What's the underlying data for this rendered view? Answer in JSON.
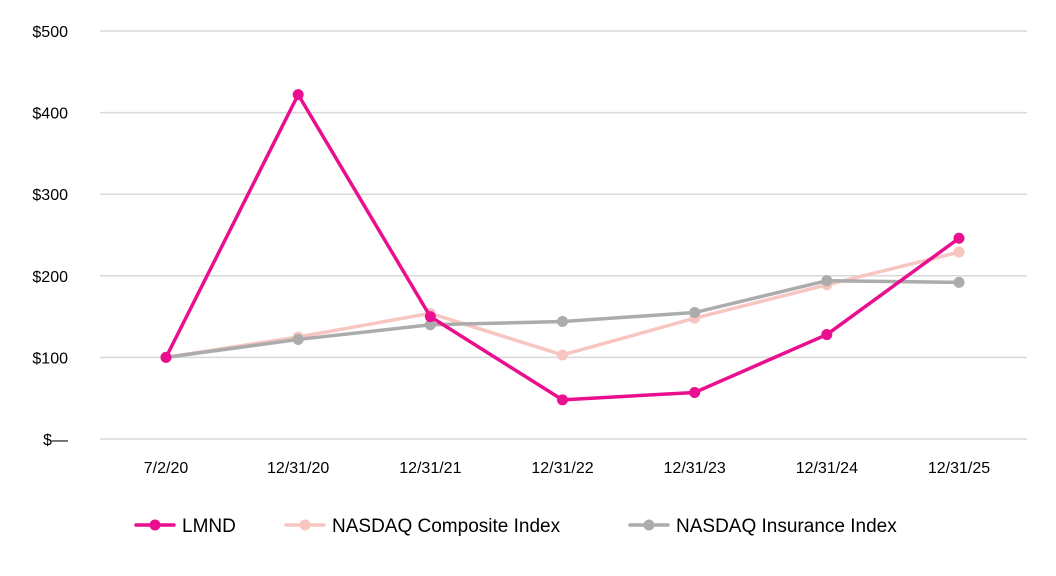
{
  "chart_data": {
    "type": "line",
    "title": "",
    "xlabel": "",
    "ylabel": "",
    "categories": [
      "7/2/20",
      "12/31/20",
      "12/31/21",
      "12/31/22",
      "12/31/23",
      "12/31/24",
      "12/31/25"
    ],
    "ylim": [
      0,
      500
    ],
    "yticks": [
      0,
      100,
      200,
      300,
      400,
      500
    ],
    "ytick_labels": [
      "$—",
      "$100",
      "$200",
      "$300",
      "$400",
      "$500"
    ],
    "grid": true,
    "legend_position": "bottom",
    "series": [
      {
        "name": "NASDAQ Composite Index",
        "color": "#f8c6c0",
        "values": [
          100,
          125,
          154,
          103,
          148,
          189,
          229
        ]
      },
      {
        "name": "NASDAQ Insurance Index",
        "color": "#acacac",
        "values": [
          100,
          122,
          140,
          144,
          155,
          194,
          192
        ]
      },
      {
        "name": "LMND",
        "color": "#ea0f8e",
        "values": [
          100,
          422,
          150,
          48,
          57,
          128,
          246
        ]
      }
    ],
    "legend_order": [
      "LMND",
      "NASDAQ Composite Index",
      "NASDAQ Insurance Index"
    ]
  }
}
